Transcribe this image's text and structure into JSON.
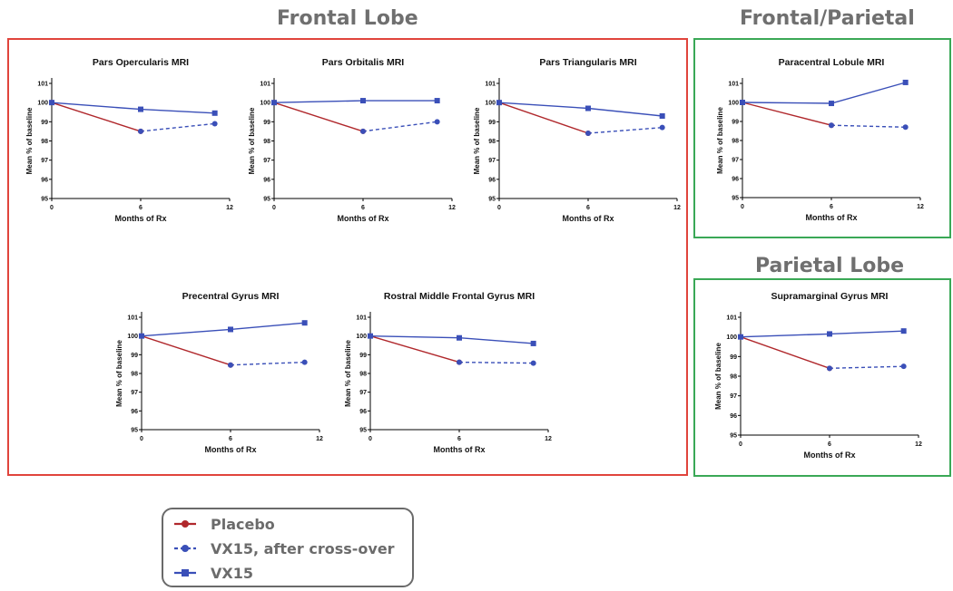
{
  "groups": [
    {
      "id": "frontal",
      "title": "Frontal Lobe",
      "border_color": "#e0443c"
    },
    {
      "id": "frontal_parietal",
      "title": "Frontal/Parietal",
      "border_color": "#3aa856"
    },
    {
      "id": "parietal",
      "title": "Parietal Lobe",
      "border_color": "#3aa856"
    }
  ],
  "legend": {
    "items": [
      {
        "label": "Placebo",
        "color": "#b0282c",
        "line": "solid",
        "marker": "circle"
      },
      {
        "label": "VX15, after cross-over",
        "color": "#3a4fb8",
        "line": "dashed",
        "marker": "circle"
      },
      {
        "label": "VX15",
        "color": "#3a4fb8",
        "line": "solid",
        "marker": "square"
      }
    ]
  },
  "chart_data": [
    {
      "type": "line",
      "group": "frontal",
      "title": "Pars Opercularis  MRI",
      "xlabel": "Months of Rx",
      "ylabel": "Mean % of baseline",
      "xlim": [
        0,
        12
      ],
      "ylim": [
        95,
        101
      ],
      "xticks": [
        0,
        6,
        12
      ],
      "yticks": [
        95,
        96,
        97,
        98,
        99,
        100,
        101
      ],
      "series": [
        {
          "name": "Placebo",
          "x": [
            0,
            6
          ],
          "y": [
            100,
            98.5
          ]
        },
        {
          "name": "VX15, after cross-over",
          "x": [
            6,
            11
          ],
          "y": [
            98.5,
            98.9
          ]
        },
        {
          "name": "VX15",
          "x": [
            0,
            6,
            11
          ],
          "y": [
            100,
            99.65,
            99.45
          ]
        }
      ]
    },
    {
      "type": "line",
      "group": "frontal",
      "title": "Pars Orbitalis  MRI",
      "xlabel": "Months of Rx",
      "ylabel": "Mean % of baseline",
      "xlim": [
        0,
        12
      ],
      "ylim": [
        95,
        101
      ],
      "xticks": [
        0,
        6,
        12
      ],
      "yticks": [
        95,
        96,
        97,
        98,
        99,
        100,
        101
      ],
      "series": [
        {
          "name": "Placebo",
          "x": [
            0,
            6
          ],
          "y": [
            100,
            98.5
          ]
        },
        {
          "name": "VX15, after cross-over",
          "x": [
            6,
            11
          ],
          "y": [
            98.5,
            99.0
          ]
        },
        {
          "name": "VX15",
          "x": [
            0,
            6,
            11
          ],
          "y": [
            100,
            100.1,
            100.1
          ]
        }
      ]
    },
    {
      "type": "line",
      "group": "frontal",
      "title": "Pars Triangularis  MRI",
      "xlabel": "Months of Rx",
      "ylabel": "Mean % of baseline",
      "xlim": [
        0,
        12
      ],
      "ylim": [
        95,
        101
      ],
      "xticks": [
        0,
        6,
        12
      ],
      "yticks": [
        95,
        96,
        97,
        98,
        99,
        100,
        101
      ],
      "series": [
        {
          "name": "Placebo",
          "x": [
            0,
            6
          ],
          "y": [
            100,
            98.4
          ]
        },
        {
          "name": "VX15, after cross-over",
          "x": [
            6,
            11
          ],
          "y": [
            98.4,
            98.7
          ]
        },
        {
          "name": "VX15",
          "x": [
            0,
            6,
            11
          ],
          "y": [
            100,
            99.7,
            99.3
          ]
        }
      ]
    },
    {
      "type": "line",
      "group": "frontal",
      "title": "Precentral Gyrus MRI",
      "xlabel": "Months of Rx",
      "ylabel": "Mean % of baseline",
      "xlim": [
        0,
        12
      ],
      "ylim": [
        95,
        101
      ],
      "xticks": [
        0,
        6,
        12
      ],
      "yticks": [
        95,
        96,
        97,
        98,
        99,
        100,
        101
      ],
      "series": [
        {
          "name": "Placebo",
          "x": [
            0,
            6
          ],
          "y": [
            100,
            98.45
          ]
        },
        {
          "name": "VX15, after cross-over",
          "x": [
            6,
            11
          ],
          "y": [
            98.45,
            98.6
          ]
        },
        {
          "name": "VX15",
          "x": [
            0,
            6,
            11
          ],
          "y": [
            100,
            100.35,
            100.7
          ]
        }
      ]
    },
    {
      "type": "line",
      "group": "frontal",
      "title": "Rostral Middle Frontal Gyrus MRI",
      "xlabel": "Months of Rx",
      "ylabel": "Mean % of baseline",
      "xlim": [
        0,
        12
      ],
      "ylim": [
        95,
        101
      ],
      "xticks": [
        0,
        6,
        12
      ],
      "yticks": [
        95,
        96,
        97,
        98,
        99,
        100,
        101
      ],
      "series": [
        {
          "name": "Placebo",
          "x": [
            0,
            6
          ],
          "y": [
            100,
            98.6
          ]
        },
        {
          "name": "VX15, after cross-over",
          "x": [
            6,
            11
          ],
          "y": [
            98.6,
            98.55
          ]
        },
        {
          "name": "VX15",
          "x": [
            0,
            6,
            11
          ],
          "y": [
            100,
            99.9,
            99.6
          ]
        }
      ]
    },
    {
      "type": "line",
      "group": "frontal_parietal",
      "title": "Paracentral Lobule  MRI",
      "xlabel": "Months of Rx",
      "ylabel": "Mean % of baseline",
      "xlim": [
        0,
        12
      ],
      "ylim": [
        95,
        101
      ],
      "xticks": [
        0,
        6,
        12
      ],
      "yticks": [
        95,
        96,
        97,
        98,
        99,
        100,
        101
      ],
      "series": [
        {
          "name": "Placebo",
          "x": [
            0,
            6
          ],
          "y": [
            100,
            98.8
          ]
        },
        {
          "name": "VX15, after cross-over",
          "x": [
            6,
            11
          ],
          "y": [
            98.8,
            98.7
          ]
        },
        {
          "name": "VX15",
          "x": [
            0,
            6,
            11
          ],
          "y": [
            100,
            99.95,
            101.05
          ]
        }
      ]
    },
    {
      "type": "line",
      "group": "parietal",
      "title": "Supramarginal Gyrus MRI",
      "xlabel": "Months of Rx",
      "ylabel": "Mean % of baseline",
      "xlim": [
        0,
        12
      ],
      "ylim": [
        95,
        101
      ],
      "xticks": [
        0,
        6,
        12
      ],
      "yticks": [
        95,
        96,
        97,
        98,
        99,
        100,
        101
      ],
      "series": [
        {
          "name": "Placebo",
          "x": [
            0,
            6
          ],
          "y": [
            100,
            98.4
          ]
        },
        {
          "name": "VX15, after cross-over",
          "x": [
            6,
            11
          ],
          "y": [
            98.4,
            98.5
          ]
        },
        {
          "name": "VX15",
          "x": [
            0,
            6,
            11
          ],
          "y": [
            100,
            100.15,
            100.3
          ]
        }
      ]
    }
  ]
}
